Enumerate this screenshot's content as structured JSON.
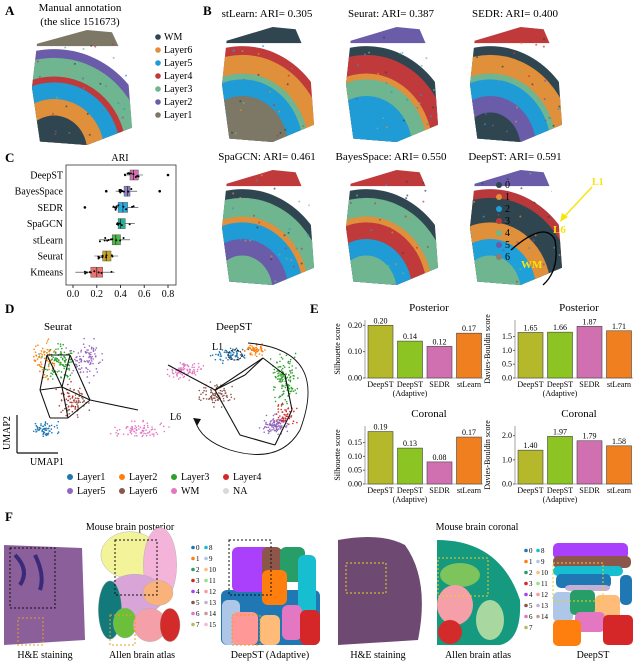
{
  "panel_labels": {
    "a": "A",
    "b": "B",
    "c": "C",
    "d": "D",
    "e": "E",
    "f": "F"
  },
  "panel_a": {
    "title_line1": "Manual annotation",
    "title_line2": "(the slice 151673)",
    "legend": [
      {
        "label": "WM",
        "color": "#2f4550"
      },
      {
        "label": "Layer6",
        "color": "#e08f3a"
      },
      {
        "label": "Layer5",
        "color": "#1f9bd6"
      },
      {
        "label": "Layer4",
        "color": "#c0393b"
      },
      {
        "label": "Layer3",
        "color": "#6fb58f"
      },
      {
        "label": "Layer2",
        "color": "#6a5ca8"
      },
      {
        "label": "Layer1",
        "color": "#7d7766"
      }
    ],
    "bands": [
      "#7d7766",
      "#6a5ca8",
      "#6fb58f",
      "#c0393b",
      "#1f9bd6",
      "#e08f3a",
      "#2f4550"
    ]
  },
  "panel_b": {
    "maps": [
      {
        "title": "stLearn: ARI= 0.305",
        "bands": [
          "#2f4550",
          "#c0393b",
          "#e08f3a",
          "#6fb58f",
          "#1f9bd6",
          "#7d7766",
          "#7d7766"
        ]
      },
      {
        "title": "Seurat: ARI= 0.387",
        "bands": [
          "#6a5ca8",
          "#2f4550",
          "#c0393b",
          "#e08f3a",
          "#6fb58f",
          "#1f9bd6",
          "#1f9bd6"
        ]
      },
      {
        "title": "SEDR: ARI= 0.400",
        "bands": [
          "#c0393b",
          "#2f4550",
          "#e08f3a",
          "#6fb58f",
          "#1f9bd6",
          "#6a5ca8",
          "#2f4550"
        ]
      },
      {
        "title": "SpaGCN: ARI= 0.461",
        "bands": [
          "#c0393b",
          "#2f4550",
          "#6fb58f",
          "#e08f3a",
          "#1f9bd6",
          "#6a5ca8",
          "#6fb58f"
        ]
      },
      {
        "title": "BayesSpace: ARI= 0.550",
        "bands": [
          "#c0393b",
          "#2f4550",
          "#6fb58f",
          "#e08f3a",
          "#c0393b",
          "#1f9bd6",
          "#6fb58f"
        ]
      },
      {
        "title": "DeepST: ARI= 0.591",
        "bands": [
          "#6a5ca8",
          "#b8383c",
          "#2f4550",
          "#2f4550",
          "#e08f3a",
          "#1fa0d8",
          "#6fb58f"
        ]
      }
    ],
    "deepst_legend": [
      {
        "label": "0",
        "color": "#2f4550"
      },
      {
        "label": "1",
        "color": "#e08f3a"
      },
      {
        "label": "2",
        "color": "#1fa0d8"
      },
      {
        "label": "3",
        "color": "#b8383c"
      },
      {
        "label": "4",
        "color": "#6fb58f"
      },
      {
        "label": "5",
        "color": "#6a5ca8"
      },
      {
        "label": "6",
        "color": "#8a7f6e"
      }
    ],
    "annotations": {
      "l1": "L1",
      "l6": "L6",
      "wm": "WM",
      "annotation_color": "#f5e60a"
    }
  },
  "chart_data": [
    {
      "type": "box",
      "panel": "C",
      "title": "ARI",
      "categories": [
        "DeepST",
        "BayesSpace",
        "SEDR",
        "SpaGCN",
        "stLearn",
        "Seurat",
        "Kmeans"
      ],
      "colors": [
        "#d66fb4",
        "#8e82c8",
        "#28a9e0",
        "#1fb596",
        "#4cb84a",
        "#c9a31a",
        "#f07070"
      ],
      "boxes": [
        {
          "min": 0.43,
          "q1": 0.48,
          "median": 0.51,
          "q3": 0.55,
          "max": 0.59,
          "outliers": [
            0.8
          ]
        },
        {
          "min": 0.36,
          "q1": 0.43,
          "median": 0.46,
          "q3": 0.48,
          "max": 0.54,
          "outliers": [
            0.28,
            0.73
          ]
        },
        {
          "min": 0.33,
          "q1": 0.38,
          "median": 0.42,
          "q3": 0.46,
          "max": 0.55,
          "outliers": [
            0.1
          ]
        },
        {
          "min": 0.37,
          "q1": 0.38,
          "median": 0.4,
          "q3": 0.44,
          "max": 0.52,
          "outliers": []
        },
        {
          "min": 0.22,
          "q1": 0.33,
          "median": 0.36,
          "q3": 0.4,
          "max": 0.48,
          "outliers": []
        },
        {
          "min": 0.18,
          "q1": 0.25,
          "median": 0.28,
          "q3": 0.32,
          "max": 0.38,
          "outliers": []
        },
        {
          "min": 0.02,
          "q1": 0.15,
          "median": 0.2,
          "q3": 0.25,
          "max": 0.35,
          "outliers": []
        }
      ],
      "xlim": [
        0,
        0.8
      ],
      "xticks": [
        "0.0",
        "0.2",
        "0.4",
        "0.6",
        "0.8"
      ]
    },
    {
      "type": "bar",
      "panel": "E",
      "title": "Posterior",
      "ylabel": "Silhouette score",
      "categories": [
        "DeepST",
        "DeepST (Adaptive)",
        "SEDR",
        "stLearn"
      ],
      "values": [
        0.2,
        0.14,
        0.12,
        0.17
      ],
      "labels": [
        "0.20",
        "0.14",
        "0.12",
        "0.17"
      ],
      "ylim": [
        0,
        0.22
      ],
      "yticks": [
        "0.00",
        "0.10",
        "0.20"
      ],
      "ytick_values": [
        0,
        0.1,
        0.2
      ]
    },
    {
      "type": "bar",
      "panel": "E",
      "title": "Posterior",
      "ylabel": "Davies-Bouldin score",
      "categories": [
        "DeepST",
        "DeepST (Adaptive)",
        "SEDR",
        "stLearn"
      ],
      "values": [
        1.65,
        1.66,
        1.87,
        1.71
      ],
      "labels": [
        "1.65",
        "1.66",
        "1.87",
        "1.71"
      ],
      "ylim": [
        0,
        2.1
      ],
      "yticks": [
        "0.0",
        "0.5",
        "1.0",
        "1.5"
      ],
      "ytick_values": [
        0,
        0.5,
        1.0,
        1.5
      ]
    },
    {
      "type": "bar",
      "panel": "E",
      "title": "Coronal",
      "ylabel": "Silhouette score",
      "categories": [
        "DeepST",
        "DeepST (Adaptive)",
        "SEDR",
        "stLearn"
      ],
      "values": [
        0.19,
        0.13,
        0.08,
        0.17
      ],
      "labels": [
        "0.19",
        "0.13",
        "0.08",
        "0.17"
      ],
      "ylim": [
        0,
        0.21
      ],
      "yticks": [
        "0.00",
        "0.05",
        "0.10",
        "0.15"
      ],
      "ytick_values": [
        0,
        0.05,
        0.1,
        0.15
      ]
    },
    {
      "type": "bar",
      "panel": "E",
      "title": "Coronal",
      "ylabel": "Davies-Bouldin score",
      "categories": [
        "DeepST",
        "DeepST (Adaptive)",
        "SEDR",
        "stLearn"
      ],
      "values": [
        1.4,
        1.97,
        1.79,
        1.58
      ],
      "labels": [
        "1.40",
        "1.97",
        "1.79",
        "1.58"
      ],
      "ylim": [
        0,
        2.4
      ],
      "yticks": [
        "0.0",
        "1.0",
        "2.0"
      ],
      "ytick_values": [
        0,
        1.0,
        2.0
      ]
    }
  ],
  "bar_colors": [
    "#b5b82a",
    "#8bc423",
    "#d070b0",
    "#f07f20"
  ],
  "panel_d": {
    "left_title": "Seurat",
    "right_title": "DeepST",
    "axis_x": "UMAP1",
    "axis_y": "UMAP2",
    "label_l1": "L1",
    "label_l6": "L6",
    "legend": [
      {
        "label": "Layer1",
        "color": "#1f77b4"
      },
      {
        "label": "Layer2",
        "color": "#ff7f0e"
      },
      {
        "label": "Layer3",
        "color": "#2ca02c"
      },
      {
        "label": "Layer4",
        "color": "#d62728"
      },
      {
        "label": "Layer5",
        "color": "#9467bd"
      },
      {
        "label": "Layer6",
        "color": "#8c564b"
      },
      {
        "label": "WM",
        "color": "#e377c2"
      },
      {
        "label": "NA",
        "color": "#d9d9d9"
      }
    ]
  },
  "panel_f": {
    "posterior_title": "Mouse brain posterior",
    "coronal_title": "Mouse brain coronal",
    "captions": [
      "H&E staining",
      "Allen brain atlas",
      "DeepST (Adaptive)",
      "H&E staining",
      "Allen brain atlas",
      "DeepST"
    ],
    "posterior_legend": [
      "0",
      "1",
      "2",
      "3",
      "4",
      "5",
      "6",
      "7",
      "8",
      "9",
      "10",
      "11",
      "12",
      "13",
      "14",
      "15"
    ],
    "coronal_legend": [
      "0",
      "1",
      "2",
      "3",
      "4",
      "5",
      "6",
      "7",
      "8",
      "9",
      "10",
      "11",
      "12",
      "13",
      "14"
    ],
    "cluster_colors": [
      "#1f77b4",
      "#ff7f0e",
      "#279e68",
      "#d62728",
      "#aa40fc",
      "#8c564b",
      "#e377c2",
      "#b5bd61",
      "#17becf",
      "#aec7e8",
      "#ffbb78",
      "#98df8a",
      "#ff9896",
      "#c5b0d5",
      "#c49c94",
      "#f7b6d2"
    ],
    "he_color": "#8a5f9a"
  }
}
